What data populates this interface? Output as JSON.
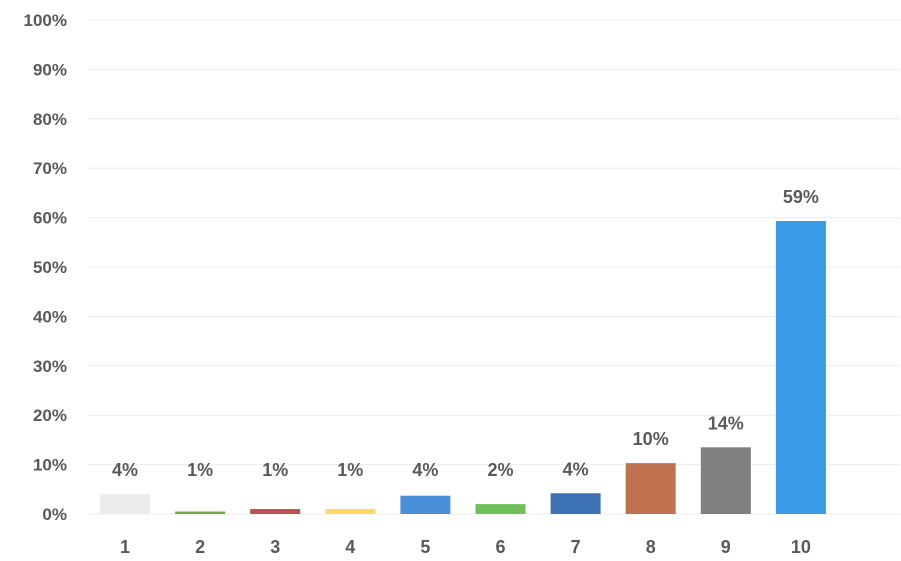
{
  "chart_data": {
    "type": "bar",
    "categories": [
      "1",
      "2",
      "3",
      "4",
      "5",
      "6",
      "7",
      "8",
      "9",
      "10"
    ],
    "values": [
      4,
      1,
      1,
      1,
      4,
      2,
      4,
      10,
      14,
      59
    ],
    "data_labels": [
      "4%",
      "1%",
      "1%",
      "1%",
      "4%",
      "2%",
      "4%",
      "10%",
      "14%",
      "59%"
    ],
    "bar_heights_percent": [
      4,
      0.5,
      1,
      1,
      3.7,
      2,
      4.2,
      10.3,
      13.5,
      59.3
    ],
    "colors": [
      "#ececec",
      "#70ad47",
      "#c0504d",
      "#ffd966",
      "#4a90d9",
      "#70c05a",
      "#3d72b4",
      "#c0714f",
      "#7f7f7f",
      "#3a9ae8"
    ],
    "yticks": [
      "0%",
      "10%",
      "20%",
      "30%",
      "40%",
      "50%",
      "60%",
      "70%",
      "80%",
      "90%",
      "100%"
    ],
    "ylim": [
      0,
      100
    ],
    "grid": true,
    "legend": "none",
    "title": "",
    "xlabel": "",
    "ylabel": ""
  }
}
